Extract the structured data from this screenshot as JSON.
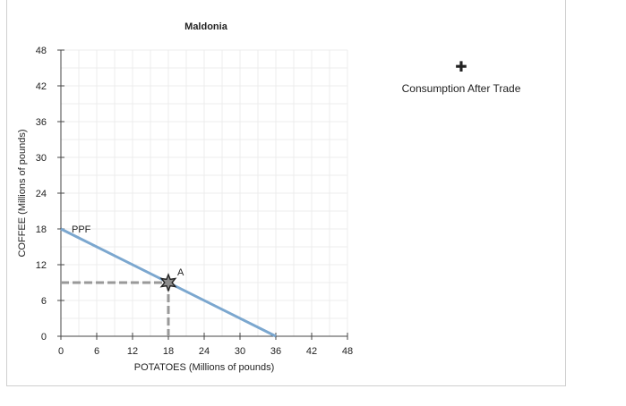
{
  "chart_data": {
    "type": "line",
    "title": "Maldonia",
    "xlabel": "POTATOES (Millions of pounds)",
    "ylabel": "COFFEE (Millions of pounds)",
    "xlim": [
      0,
      48
    ],
    "ylim": [
      0,
      48
    ],
    "xticks": [
      0,
      6,
      12,
      18,
      24,
      30,
      36,
      42,
      48
    ],
    "yticks": [
      0,
      6,
      12,
      18,
      24,
      30,
      36,
      42,
      48
    ],
    "grid": true,
    "series": [
      {
        "name": "PPF",
        "x": [
          0,
          36
        ],
        "y": [
          18,
          0
        ],
        "color": "#7ba7cf"
      }
    ],
    "points": [
      {
        "name": "A",
        "x": 18,
        "y": 9
      }
    ],
    "guides": {
      "x": 18,
      "y": 9,
      "color": "#999999"
    },
    "legend": {
      "label": "Consumption After Trade",
      "marker": "✚",
      "placement": "top-right"
    }
  }
}
